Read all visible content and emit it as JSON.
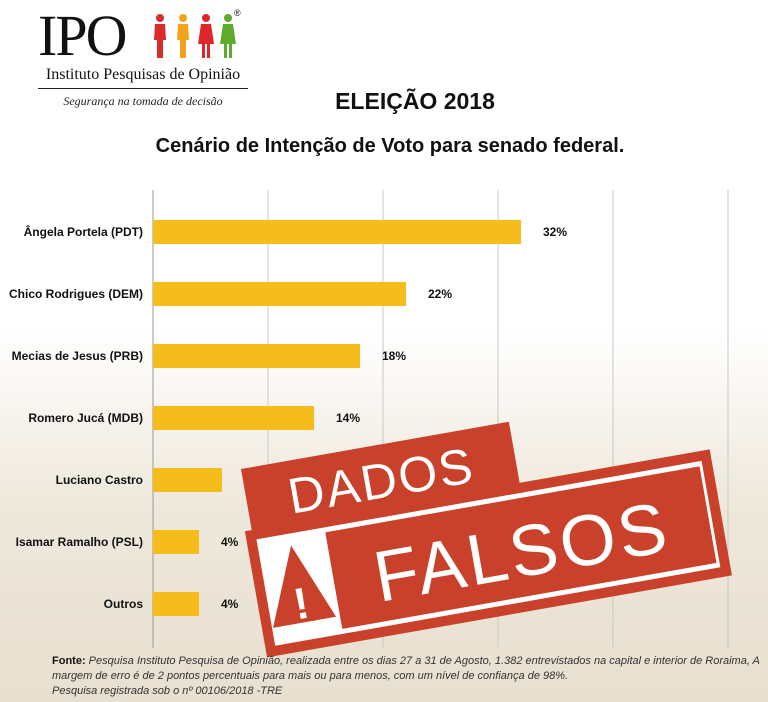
{
  "logo": {
    "text": "IPO",
    "registered": "®",
    "name": "Instituto Pesquisas de Opinião",
    "slogan": "Segurança na tomada de decisão"
  },
  "header": {
    "title": "ELEIÇÃO 2018",
    "subtitle": "Cenário de Intenção de Voto para senado federal."
  },
  "chart_data": {
    "type": "bar",
    "orientation": "horizontal",
    "categories": [
      "Ângela Portela (PDT)",
      "Chico Rodrigues (DEM)",
      "Mecias de Jesus (PRB)",
      "Romero Jucá (MDB)",
      "Luciano Castro",
      "Isamar Ramalho (PSL)",
      "Outros"
    ],
    "values": [
      32,
      22,
      18,
      14,
      6,
      4,
      4
    ],
    "value_labels": [
      "32%",
      "22%",
      "18%",
      "14%",
      "6%",
      "4%",
      "4%"
    ],
    "xlim": [
      0,
      50
    ],
    "grid": true,
    "bar_color": "#f5bc1c",
    "title": "",
    "xlabel": "",
    "ylabel": ""
  },
  "stamp": {
    "line1": "DADOS",
    "line2": "FALSOS",
    "warning_symbol": "!",
    "color": "#c9412b"
  },
  "footer": {
    "label": "Fonte:",
    "text": "Pesquisa Instituto Pesquisa de Opinião, realizada entre os dias 27 a 31 de Agosto, 1.382 entrevistados na capital e interior de Roraima, A margem de erro é de 2 pontos percentuais para mais ou para menos, com um nível de confiança de 98%.",
    "registration": "Pesquisa registrada sob o nº 00106/2018 -TRE"
  }
}
